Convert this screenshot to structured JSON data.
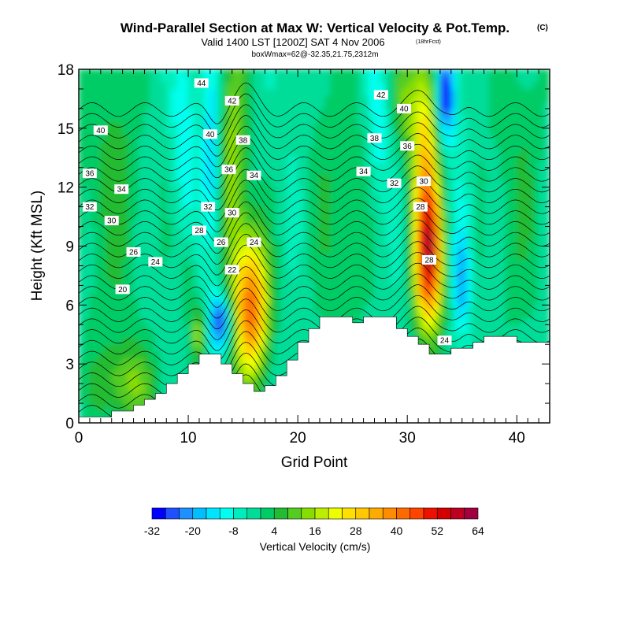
{
  "chart_data": {
    "type": "heatmap",
    "title": "Wind-Parallel Section at Max W: Vertical Velocity & Pot.Temp.",
    "title_tag": "(C)",
    "subtitle": "Valid 1400 LST [1200Z] SAT 4 Nov 2006",
    "subtitle_tag": "(18hrFcst)",
    "subtitle2": "boxWmax=62@-32.35,21.75,2312m",
    "xlabel": "Grid Point",
    "ylabel": "Height (Kft MSL)",
    "xlim": [
      0,
      43
    ],
    "ylim": [
      0,
      18
    ],
    "x_ticks": [
      0,
      10,
      20,
      30,
      40
    ],
    "y_ticks": [
      0,
      3,
      6,
      9,
      12,
      15,
      18
    ],
    "colorbar": {
      "title": "Vertical Velocity (cm/s)",
      "tick_values": [
        -32,
        -20,
        -8,
        4,
        16,
        28,
        40,
        52,
        64
      ],
      "levels": [
        -32,
        -28,
        -24,
        -20,
        -16,
        -12,
        -8,
        -4,
        0,
        4,
        8,
        12,
        16,
        20,
        24,
        28,
        32,
        36,
        40,
        44,
        48,
        52,
        56,
        60,
        64
      ],
      "colors": [
        "#0000ff",
        "#1e50ff",
        "#1e90ff",
        "#00bfff",
        "#00e5ff",
        "#00ffee",
        "#00eebb",
        "#00dd99",
        "#00cc66",
        "#22bb33",
        "#55cc22",
        "#88dd00",
        "#bbee00",
        "#eeff00",
        "#ffe000",
        "#ffc800",
        "#ffaa00",
        "#ff8c00",
        "#ff6a00",
        "#ff4400",
        "#ee1100",
        "#d40000",
        "#bb0022",
        "#a00040"
      ]
    },
    "terrain": {
      "x": [
        0,
        3,
        3,
        5,
        5,
        6,
        6,
        7,
        7,
        8,
        8,
        9,
        9,
        10,
        10,
        11,
        11,
        13,
        13,
        14,
        14,
        15,
        15,
        16,
        16,
        17,
        17,
        18,
        18,
        19,
        19,
        20,
        20,
        21,
        21,
        22,
        22,
        25,
        25,
        26,
        26,
        27,
        27,
        29,
        29,
        30,
        30,
        31,
        31,
        32,
        32,
        34,
        34,
        36,
        36,
        37,
        37,
        38,
        38,
        40,
        40,
        43
      ],
      "y": [
        0.3,
        0.3,
        0.6,
        0.6,
        0.9,
        0.9,
        1.2,
        1.2,
        1.5,
        1.5,
        2.0,
        2.0,
        2.5,
        2.5,
        3.0,
        3.0,
        3.5,
        3.5,
        3.0,
        3.0,
        2.5,
        2.5,
        2.0,
        2.0,
        1.6,
        1.6,
        1.9,
        1.9,
        2.4,
        2.4,
        3.2,
        3.2,
        4.1,
        4.1,
        4.8,
        4.8,
        5.4,
        5.4,
        5.1,
        5.1,
        5.4,
        5.4,
        5.4,
        5.4,
        4.8,
        4.8,
        4.4,
        4.4,
        4.0,
        4.0,
        3.5,
        3.5,
        3.8,
        3.8,
        4.1,
        4.1,
        4.4,
        4.4,
        4.4,
        4.4,
        4.1,
        4.1
      ]
    },
    "updrafts": [
      {
        "x": 15.8,
        "y": 5.9,
        "sx": 1.1,
        "sy": 2.6,
        "w": 44
      },
      {
        "x": 14.2,
        "y": 13.5,
        "sx": 0.9,
        "sy": 5.0,
        "w": 18
      },
      {
        "x": 32.0,
        "y": 8.6,
        "sx": 0.9,
        "sy": 2.7,
        "w": 58
      },
      {
        "x": 31.6,
        "y": 14.8,
        "sx": 0.9,
        "sy": 3.2,
        "w": 26
      },
      {
        "x": 33.5,
        "y": 16.8,
        "sx": 0.6,
        "sy": 1.6,
        "w": -32
      },
      {
        "x": 13.0,
        "y": 5.2,
        "sx": 0.7,
        "sy": 1.0,
        "w": -26
      },
      {
        "x": 12.2,
        "y": 13.5,
        "sx": 0.6,
        "sy": 4.0,
        "w": -14
      },
      {
        "x": 35.0,
        "y": 7.3,
        "sx": 0.6,
        "sy": 1.8,
        "w": -18
      },
      {
        "x": 35.2,
        "y": 11.5,
        "sx": 0.8,
        "sy": 2.5,
        "w": -6
      },
      {
        "x": 11.0,
        "y": 4.5,
        "sx": 0.4,
        "sy": 1.0,
        "w": 18
      },
      {
        "x": 10.0,
        "y": 7.0,
        "sx": 0.5,
        "sy": 1.5,
        "w": 8
      },
      {
        "x": 29.7,
        "y": 16.5,
        "sx": 0.8,
        "sy": 2.0,
        "w": 12
      },
      {
        "x": 9.5,
        "y": 15.0,
        "sx": 0.8,
        "sy": 3.0,
        "w": -9
      },
      {
        "x": 27.3,
        "y": 15.0,
        "sx": 0.7,
        "sy": 3.0,
        "w": -10
      },
      {
        "x": 4.5,
        "y": 2.0,
        "sx": 2.0,
        "sy": 1.5,
        "w": 14
      },
      {
        "x": 24.0,
        "y": 11.0,
        "sx": 2.0,
        "sy": 6.0,
        "w": 7
      },
      {
        "x": 3.0,
        "y": 12.0,
        "sx": 2.5,
        "sy": 6.0,
        "w": 8
      },
      {
        "x": 40.0,
        "y": 12.0,
        "sx": 2.5,
        "sy": 6.0,
        "w": 6
      }
    ],
    "background_w": -3,
    "theta_levels_c": [
      16,
      17,
      18,
      19,
      20,
      21,
      22,
      23,
      24,
      25,
      26,
      27,
      28,
      29,
      30,
      31,
      32,
      33,
      34,
      35,
      36,
      37,
      38,
      39,
      40,
      41,
      42,
      43,
      44
    ],
    "contour_labels": [
      {
        "text": "44",
        "x": 11.2,
        "y": 17.3
      },
      {
        "text": "42",
        "x": 14.0,
        "y": 16.4
      },
      {
        "text": "42",
        "x": 27.6,
        "y": 16.7
      },
      {
        "text": "40",
        "x": 2.0,
        "y": 14.9
      },
      {
        "text": "40",
        "x": 12.0,
        "y": 14.7
      },
      {
        "text": "40",
        "x": 29.7,
        "y": 16.0
      },
      {
        "text": "38",
        "x": 15.0,
        "y": 14.4
      },
      {
        "text": "38",
        "x": 27.0,
        "y": 14.5
      },
      {
        "text": "36",
        "x": 1.0,
        "y": 12.7
      },
      {
        "text": "36",
        "x": 13.7,
        "y": 12.9
      },
      {
        "text": "36",
        "x": 30.0,
        "y": 14.1
      },
      {
        "text": "34",
        "x": 3.9,
        "y": 11.9
      },
      {
        "text": "34",
        "x": 16.0,
        "y": 12.6
      },
      {
        "text": "34",
        "x": 26.0,
        "y": 12.8
      },
      {
        "text": "32",
        "x": 1.0,
        "y": 11.0
      },
      {
        "text": "32",
        "x": 11.8,
        "y": 11.0
      },
      {
        "text": "32",
        "x": 28.8,
        "y": 12.2
      },
      {
        "text": "30",
        "x": 3.0,
        "y": 10.3
      },
      {
        "text": "30",
        "x": 14.0,
        "y": 10.7
      },
      {
        "text": "30",
        "x": 31.5,
        "y": 12.3
      },
      {
        "text": "28",
        "x": 11.0,
        "y": 9.8
      },
      {
        "text": "28",
        "x": 31.2,
        "y": 11.0
      },
      {
        "text": "28",
        "x": 32.0,
        "y": 8.3
      },
      {
        "text": "26",
        "x": 5.0,
        "y": 8.7
      },
      {
        "text": "26",
        "x": 13.0,
        "y": 9.2
      },
      {
        "text": "24",
        "x": 7.0,
        "y": 8.2
      },
      {
        "text": "24",
        "x": 16.0,
        "y": 9.2
      },
      {
        "text": "24",
        "x": 33.4,
        "y": 4.2
      },
      {
        "text": "22",
        "x": 14.0,
        "y": 7.8
      },
      {
        "text": "20",
        "x": 4.0,
        "y": 6.8
      }
    ]
  }
}
